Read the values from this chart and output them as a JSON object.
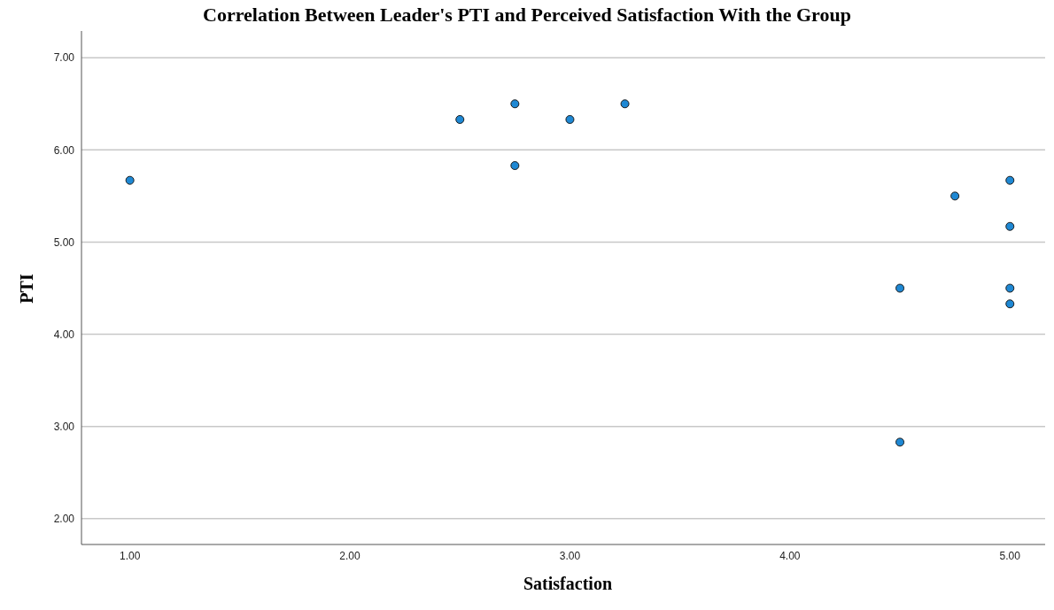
{
  "chart_data": {
    "type": "scatter",
    "title": "Correlation Between Leader's PTI and Perceived Satisfaction With the Group",
    "xlabel": "Satisfaction",
    "ylabel": "PTI",
    "x": [
      1.0,
      2.5,
      2.75,
      2.75,
      3.0,
      3.25,
      4.5,
      4.5,
      4.75,
      5.0,
      5.0,
      5.0,
      5.0
    ],
    "values": [
      5.67,
      6.33,
      6.5,
      5.83,
      6.33,
      6.5,
      4.5,
      2.83,
      5.5,
      5.67,
      5.17,
      4.5,
      4.33
    ],
    "color": "#1e88d4",
    "marker": "circle",
    "grid": "y",
    "xlim": [
      0.78,
      5.16
    ],
    "ylim": [
      1.72,
      7.29
    ],
    "xticks": [
      {
        "value": 1,
        "label": "1.00"
      },
      {
        "value": 2,
        "label": "2.00"
      },
      {
        "value": 3,
        "label": "3.00"
      },
      {
        "value": 4,
        "label": "4.00"
      },
      {
        "value": 5,
        "label": "5.00"
      }
    ],
    "yticks": [
      {
        "value": 2,
        "label": "2.00"
      },
      {
        "value": 3,
        "label": "3.00"
      },
      {
        "value": 4,
        "label": "4.00"
      },
      {
        "value": 5,
        "label": "5.00"
      },
      {
        "value": 6,
        "label": "6.00"
      },
      {
        "value": 7,
        "label": "7.00"
      }
    ]
  }
}
